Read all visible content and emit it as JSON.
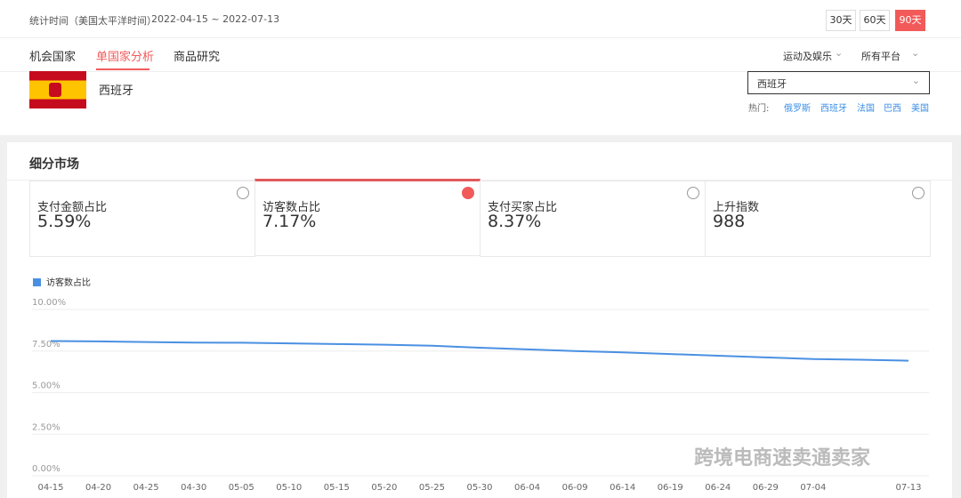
{
  "header": {
    "period_label": "统计时间（美国太平洋时间）",
    "period": "2022-04-15 ~ 2022-07-13",
    "ranges": [
      "30天",
      "60天",
      "90天"
    ]
  },
  "tabs": [
    "机会国家",
    "单国家分析",
    "商品研究"
  ],
  "filters": [
    "运动及娱乐",
    "所有平台"
  ],
  "country": {
    "name": "西班牙",
    "select": "西班牙",
    "hot_label": "热门:",
    "hot": [
      "俄罗斯",
      "西班牙",
      "法国",
      "巴西",
      "美国"
    ]
  },
  "section_title": "细分市场",
  "metrics": [
    {
      "label": "支付金额占比",
      "value": "5.59%"
    },
    {
      "label": "访客数占比",
      "value": "7.17%"
    },
    {
      "label": "支付买家占比",
      "value": "8.37%"
    },
    {
      "label": "上升指数",
      "value": "988"
    }
  ],
  "watermark": "跨境电商速卖通卖家",
  "chart_data": {
    "type": "line",
    "categories": [
      "04-15",
      "04-20",
      "04-25",
      "04-30",
      "05-05",
      "05-10",
      "05-15",
      "05-20",
      "05-25",
      "05-30",
      "06-04",
      "06-09",
      "06-14",
      "06-19",
      "06-24",
      "06-29",
      "07-04",
      null,
      "07-13"
    ],
    "series": [
      {
        "name": "访客数占比",
        "color": "#4a90e2",
        "values": [
          8.1,
          8.08,
          8.04,
          8.01,
          8.0,
          7.96,
          7.92,
          7.88,
          7.82,
          7.7,
          7.6,
          7.5,
          7.42,
          7.32,
          7.22,
          7.12,
          7.02,
          6.98,
          6.92
        ]
      }
    ],
    "ylim": [
      0,
      10
    ],
    "yticks": [
      {
        "value": 0,
        "label": "0.00%"
      },
      {
        "value": 2.5,
        "label": "2.50%"
      },
      {
        "value": 5,
        "label": "5.00%"
      },
      {
        "value": 7.5,
        "label": "7.50%"
      },
      {
        "value": 10,
        "label": "10.00%"
      }
    ],
    "grid": true
  }
}
